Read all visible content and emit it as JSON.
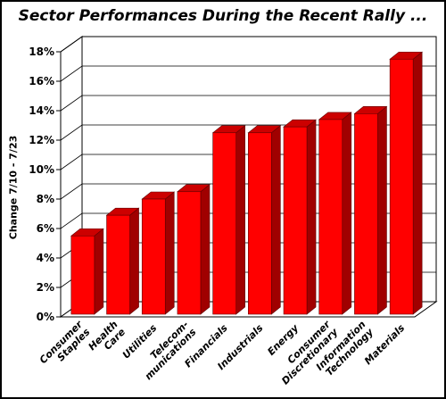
{
  "chart_data": {
    "type": "bar",
    "title": "Sector Performances During the Recent Rally ...",
    "ylabel": "Change 7/10 - 7/23",
    "xlabel": "",
    "ylim": [
      0,
      18
    ],
    "yticks": [
      "0%",
      "2%",
      "4%",
      "6%",
      "8%",
      "10%",
      "12%",
      "14%",
      "16%",
      "18%"
    ],
    "grid": true,
    "categories": [
      [
        "Consumer",
        "Staples"
      ],
      [
        "Health",
        "Care"
      ],
      [
        "Utilities"
      ],
      [
        "Telecom-",
        "munications"
      ],
      [
        "Financials"
      ],
      [
        "Industrials"
      ],
      [
        "Energy"
      ],
      [
        "Consumer",
        "Discretionary"
      ],
      [
        "Information",
        "Technology"
      ],
      [
        "Materials"
      ]
    ],
    "values": [
      5.5,
      6.9,
      8.0,
      8.5,
      12.5,
      12.5,
      12.9,
      13.4,
      13.8,
      17.5
    ],
    "colors": {
      "bar_front": "#ff0000",
      "bar_side": "#a00000",
      "bar_top": "#cc0000",
      "wall": "#ffffff",
      "grid": "#000000"
    }
  }
}
